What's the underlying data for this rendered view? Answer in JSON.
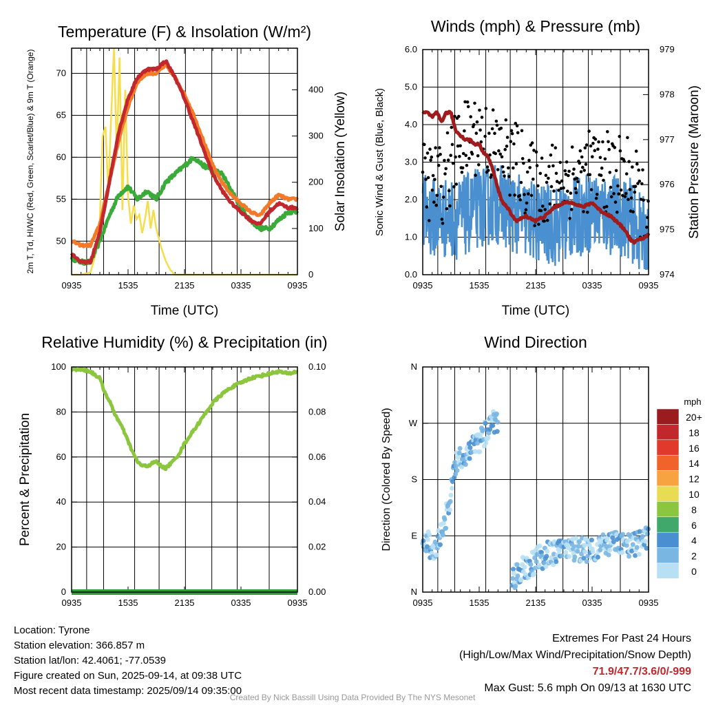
{
  "chart_data": [
    {
      "type": "line",
      "title": "Temperature (F) & Insolation (W/m²)",
      "xlabel": "Time (UTC)",
      "ylabel": "2m T, Td, HI/WC (Red, Green, Scarlet/Blue) & 9m T (Orange)",
      "ylabel_right": "Solar Insolation (Yellow)",
      "x_ticks": [
        "0935",
        "1535",
        "2135",
        "0335",
        "0935"
      ],
      "ylim": [
        46,
        73
      ],
      "y_ticks": [
        50,
        55,
        60,
        65,
        70
      ],
      "ylim_right": [
        0,
        490
      ],
      "y_ticks_right": [
        0,
        100,
        200,
        300,
        400
      ],
      "series": [
        {
          "color": "#c0282d",
          "x_hours": [
            0,
            1,
            2,
            3,
            4,
            5,
            6,
            7,
            8,
            9,
            10,
            11,
            12,
            13,
            14,
            15,
            16,
            17,
            18,
            19,
            20,
            21,
            22,
            23,
            24
          ],
          "values": [
            48.5,
            47.5,
            47.5,
            51,
            57,
            63,
            67,
            69.5,
            70.5,
            70.5,
            71.5,
            69.5,
            67,
            64,
            61,
            58,
            56,
            54.5,
            53.5,
            52.5,
            52,
            53.5,
            54.5,
            54,
            54
          ]
        },
        {
          "color": "#f47a2a",
          "x_hours": [
            0,
            1,
            2,
            3,
            4,
            5,
            6,
            7,
            8,
            9,
            10,
            11,
            12,
            13,
            14,
            15,
            16,
            17,
            18,
            19,
            20,
            21,
            22,
            23,
            24
          ],
          "values": [
            50,
            49.5,
            49.5,
            52,
            57,
            62,
            66,
            69,
            70,
            70,
            71,
            69.5,
            67.5,
            65,
            62,
            59,
            57,
            55.5,
            54.5,
            53.5,
            53,
            54.5,
            55.5,
            55,
            55
          ]
        },
        {
          "color": "#3aaa38",
          "x_hours": [
            0,
            1,
            2,
            3,
            4,
            5,
            6,
            7,
            8,
            9,
            10,
            11,
            12,
            13,
            14,
            15,
            16,
            17,
            18,
            19,
            20,
            21,
            22,
            23,
            24
          ],
          "values": [
            48,
            47.5,
            47.5,
            50,
            53,
            55.5,
            56.5,
            55,
            56,
            55,
            57,
            58,
            59,
            60,
            59,
            58.5,
            58,
            56,
            54,
            52.5,
            51.5,
            51.5,
            52.5,
            53.5,
            53.5
          ]
        },
        {
          "color": "#f5dd4b",
          "axis": "right",
          "x_hours": [
            0,
            1,
            2,
            2.5,
            3,
            3.3,
            3.6,
            3.9,
            4.2,
            4.5,
            4.8,
            5.1,
            5.4,
            5.7,
            6,
            6.3,
            6.6,
            6.9,
            7.2,
            7.5,
            7.8,
            8.1,
            8.4,
            8.7,
            9,
            9.5,
            10,
            10.5,
            11,
            11.5,
            12,
            24
          ],
          "values": [
            0,
            0,
            5,
            40,
            120,
            300,
            320,
            180,
            340,
            490,
            260,
            470,
            140,
            400,
            170,
            110,
            150,
            120,
            130,
            90,
            120,
            160,
            100,
            140,
            100,
            60,
            30,
            10,
            0,
            0,
            0,
            0
          ]
        }
      ]
    },
    {
      "type": "line",
      "title": "Winds (mph) & Pressure (mb)",
      "xlabel": "Time (UTC)",
      "ylabel": "Sonic Wind & Gust (Blue, Black)",
      "ylabel_right": "Station Pressure (Maroon)",
      "x_ticks": [
        "0935",
        "1535",
        "2135",
        "0335",
        "0935"
      ],
      "ylim": [
        0,
        6
      ],
      "y_ticks": [
        "0.0",
        "1.0",
        "2.0",
        "3.0",
        "4.0",
        "5.0",
        "6.0"
      ],
      "ylim_right": [
        974,
        979
      ],
      "y_ticks_right": [
        974,
        975,
        976,
        977,
        978,
        979
      ],
      "series": [
        {
          "color": "#4a90d0",
          "style": "noisy-line",
          "x_hours": [
            0,
            2,
            4,
            6,
            8,
            10,
            12,
            14,
            16,
            18,
            20,
            22,
            24
          ],
          "values": [
            1.6,
            1.5,
            1.5,
            1.8,
            1.9,
            1.6,
            1.4,
            1.3,
            1.5,
            1.7,
            1.6,
            1.5,
            0.8
          ]
        },
        {
          "color": "#000000",
          "style": "points",
          "x_hours": [
            0,
            2,
            4,
            6,
            8,
            10,
            12,
            14,
            16,
            18,
            20,
            22,
            24
          ],
          "values": [
            2.5,
            2.4,
            3.5,
            3.8,
            3.3,
            3.0,
            2.3,
            2.5,
            2.6,
            2.8,
            2.7,
            2.6,
            1.5
          ]
        },
        {
          "color": "#a01c1c",
          "axis": "right",
          "x_hours": [
            0,
            0.5,
            1,
            1.5,
            2,
            2.5,
            3,
            3.5,
            4,
            4.5,
            5,
            5.5,
            6,
            6.5,
            7,
            7.5,
            8,
            8.5,
            9,
            9.5,
            10,
            11,
            12,
            13,
            14,
            15,
            16,
            17,
            18,
            19,
            20,
            21,
            21.5,
            22,
            22.5,
            23,
            23.5,
            24
          ],
          "values": [
            977.6,
            977.6,
            977.5,
            977.6,
            977.4,
            977.6,
            977.6,
            977.2,
            977.1,
            977.0,
            977.0,
            976.9,
            976.9,
            976.7,
            976.6,
            976.3,
            975.9,
            975.6,
            975.5,
            975.3,
            975.2,
            975.3,
            975.2,
            975.3,
            975.5,
            975.6,
            975.6,
            975.5,
            975.6,
            975.4,
            975.3,
            975.1,
            975.0,
            974.8,
            974.7,
            974.8,
            974.8,
            974.9
          ]
        }
      ]
    },
    {
      "type": "line",
      "title": "Relative Humidity (%) & Precipitation (in)",
      "ylabel": "Percent & Precipitation",
      "x_ticks": [
        "0935",
        "1535",
        "2135",
        "0335",
        "0935"
      ],
      "ylim": [
        0,
        100
      ],
      "y_ticks": [
        0,
        20,
        40,
        60,
        80,
        100
      ],
      "ylim_right": [
        0,
        0.1
      ],
      "y_ticks_right": [
        "0.00",
        "0.02",
        "0.04",
        "0.06",
        "0.08",
        "0.10"
      ],
      "series": [
        {
          "color": "#8cc63e",
          "x_hours": [
            0,
            1,
            2,
            3,
            3.5,
            4,
            4.5,
            5,
            5.5,
            6,
            6.5,
            7,
            7.5,
            8,
            8.5,
            9,
            9.5,
            10,
            10.5,
            11,
            11.5,
            12,
            13,
            14,
            15,
            16,
            17,
            18,
            19,
            20,
            21,
            22,
            23,
            24
          ],
          "values": [
            99,
            99,
            98,
            95,
            89,
            85,
            80,
            76,
            72,
            67,
            62,
            58,
            56,
            56,
            57,
            58,
            56,
            55,
            57,
            59,
            62,
            66,
            72,
            78,
            84,
            88,
            91,
            93,
            95,
            96,
            97,
            98,
            97,
            98
          ]
        },
        {
          "color": "#2e9e3a",
          "axis": "right",
          "x_hours": [
            0,
            24
          ],
          "values": [
            0,
            0
          ]
        }
      ]
    },
    {
      "type": "scatter",
      "title": "Wind Direction",
      "ylabel": "Direction (Colored By Speed)",
      "x_ticks": [
        "0935",
        "1535",
        "2135",
        "0335",
        "0935"
      ],
      "y_ticks": [
        "N",
        "E",
        "S",
        "W",
        "N"
      ],
      "ylim_deg": [
        0,
        360
      ],
      "colorbar": {
        "label": "mph",
        "levels": [
          "20+",
          "18",
          "16",
          "14",
          "12",
          "10",
          "8",
          "6",
          "4",
          "2",
          "0"
        ],
        "colors": [
          "#9b1c1f",
          "#c0282d",
          "#e13a2c",
          "#f0642c",
          "#f7a341",
          "#e8dc55",
          "#8cc63e",
          "#3fa86a",
          "#4a90d0",
          "#7ab6e2",
          "#b7e0f4"
        ]
      },
      "point_groups": [
        {
          "x_hours": [
            0,
            0.5,
            1,
            1.5,
            2,
            2.5,
            3,
            3.5,
            4,
            4.5,
            5,
            5.5,
            6,
            6.5,
            7,
            7.5,
            8
          ],
          "deg": [
            70,
            80,
            65,
            70,
            100,
            120,
            160,
            200,
            220,
            215,
            230,
            235,
            240,
            250,
            265,
            270,
            275
          ]
        },
        {
          "x_hours": [
            9.5,
            10,
            11,
            12,
            13,
            14,
            15,
            16,
            17,
            18,
            19,
            20,
            21,
            22,
            23,
            24
          ],
          "deg": [
            20,
            30,
            40,
            50,
            60,
            62,
            65,
            70,
            68,
            70,
            72,
            75,
            78,
            72,
            80,
            85
          ]
        }
      ]
    }
  ],
  "info": {
    "location": "Location: Tyrone",
    "elevation": "Station elevation: 366.857 m",
    "latlon": "Station lat/lon: 42.4061; -77.0539",
    "created": "Figure created on Sun, 2025-09-14, at 09:38 UTC",
    "recent": "Most recent data timestamp: 2025/09/14 09:35:00"
  },
  "extremes": {
    "title": "Extremes For Past 24 Hours",
    "subtitle": "(High/Low/Max Wind/Precipitation/Snow Depth)",
    "values": "71.9/47.7/3.6/0/-999",
    "gust": "Max Gust: 5.6 mph On 09/13 at 1630 UTC"
  },
  "credit": "Created By Nick Bassill Using Data Provided By The NYS Mesonet"
}
